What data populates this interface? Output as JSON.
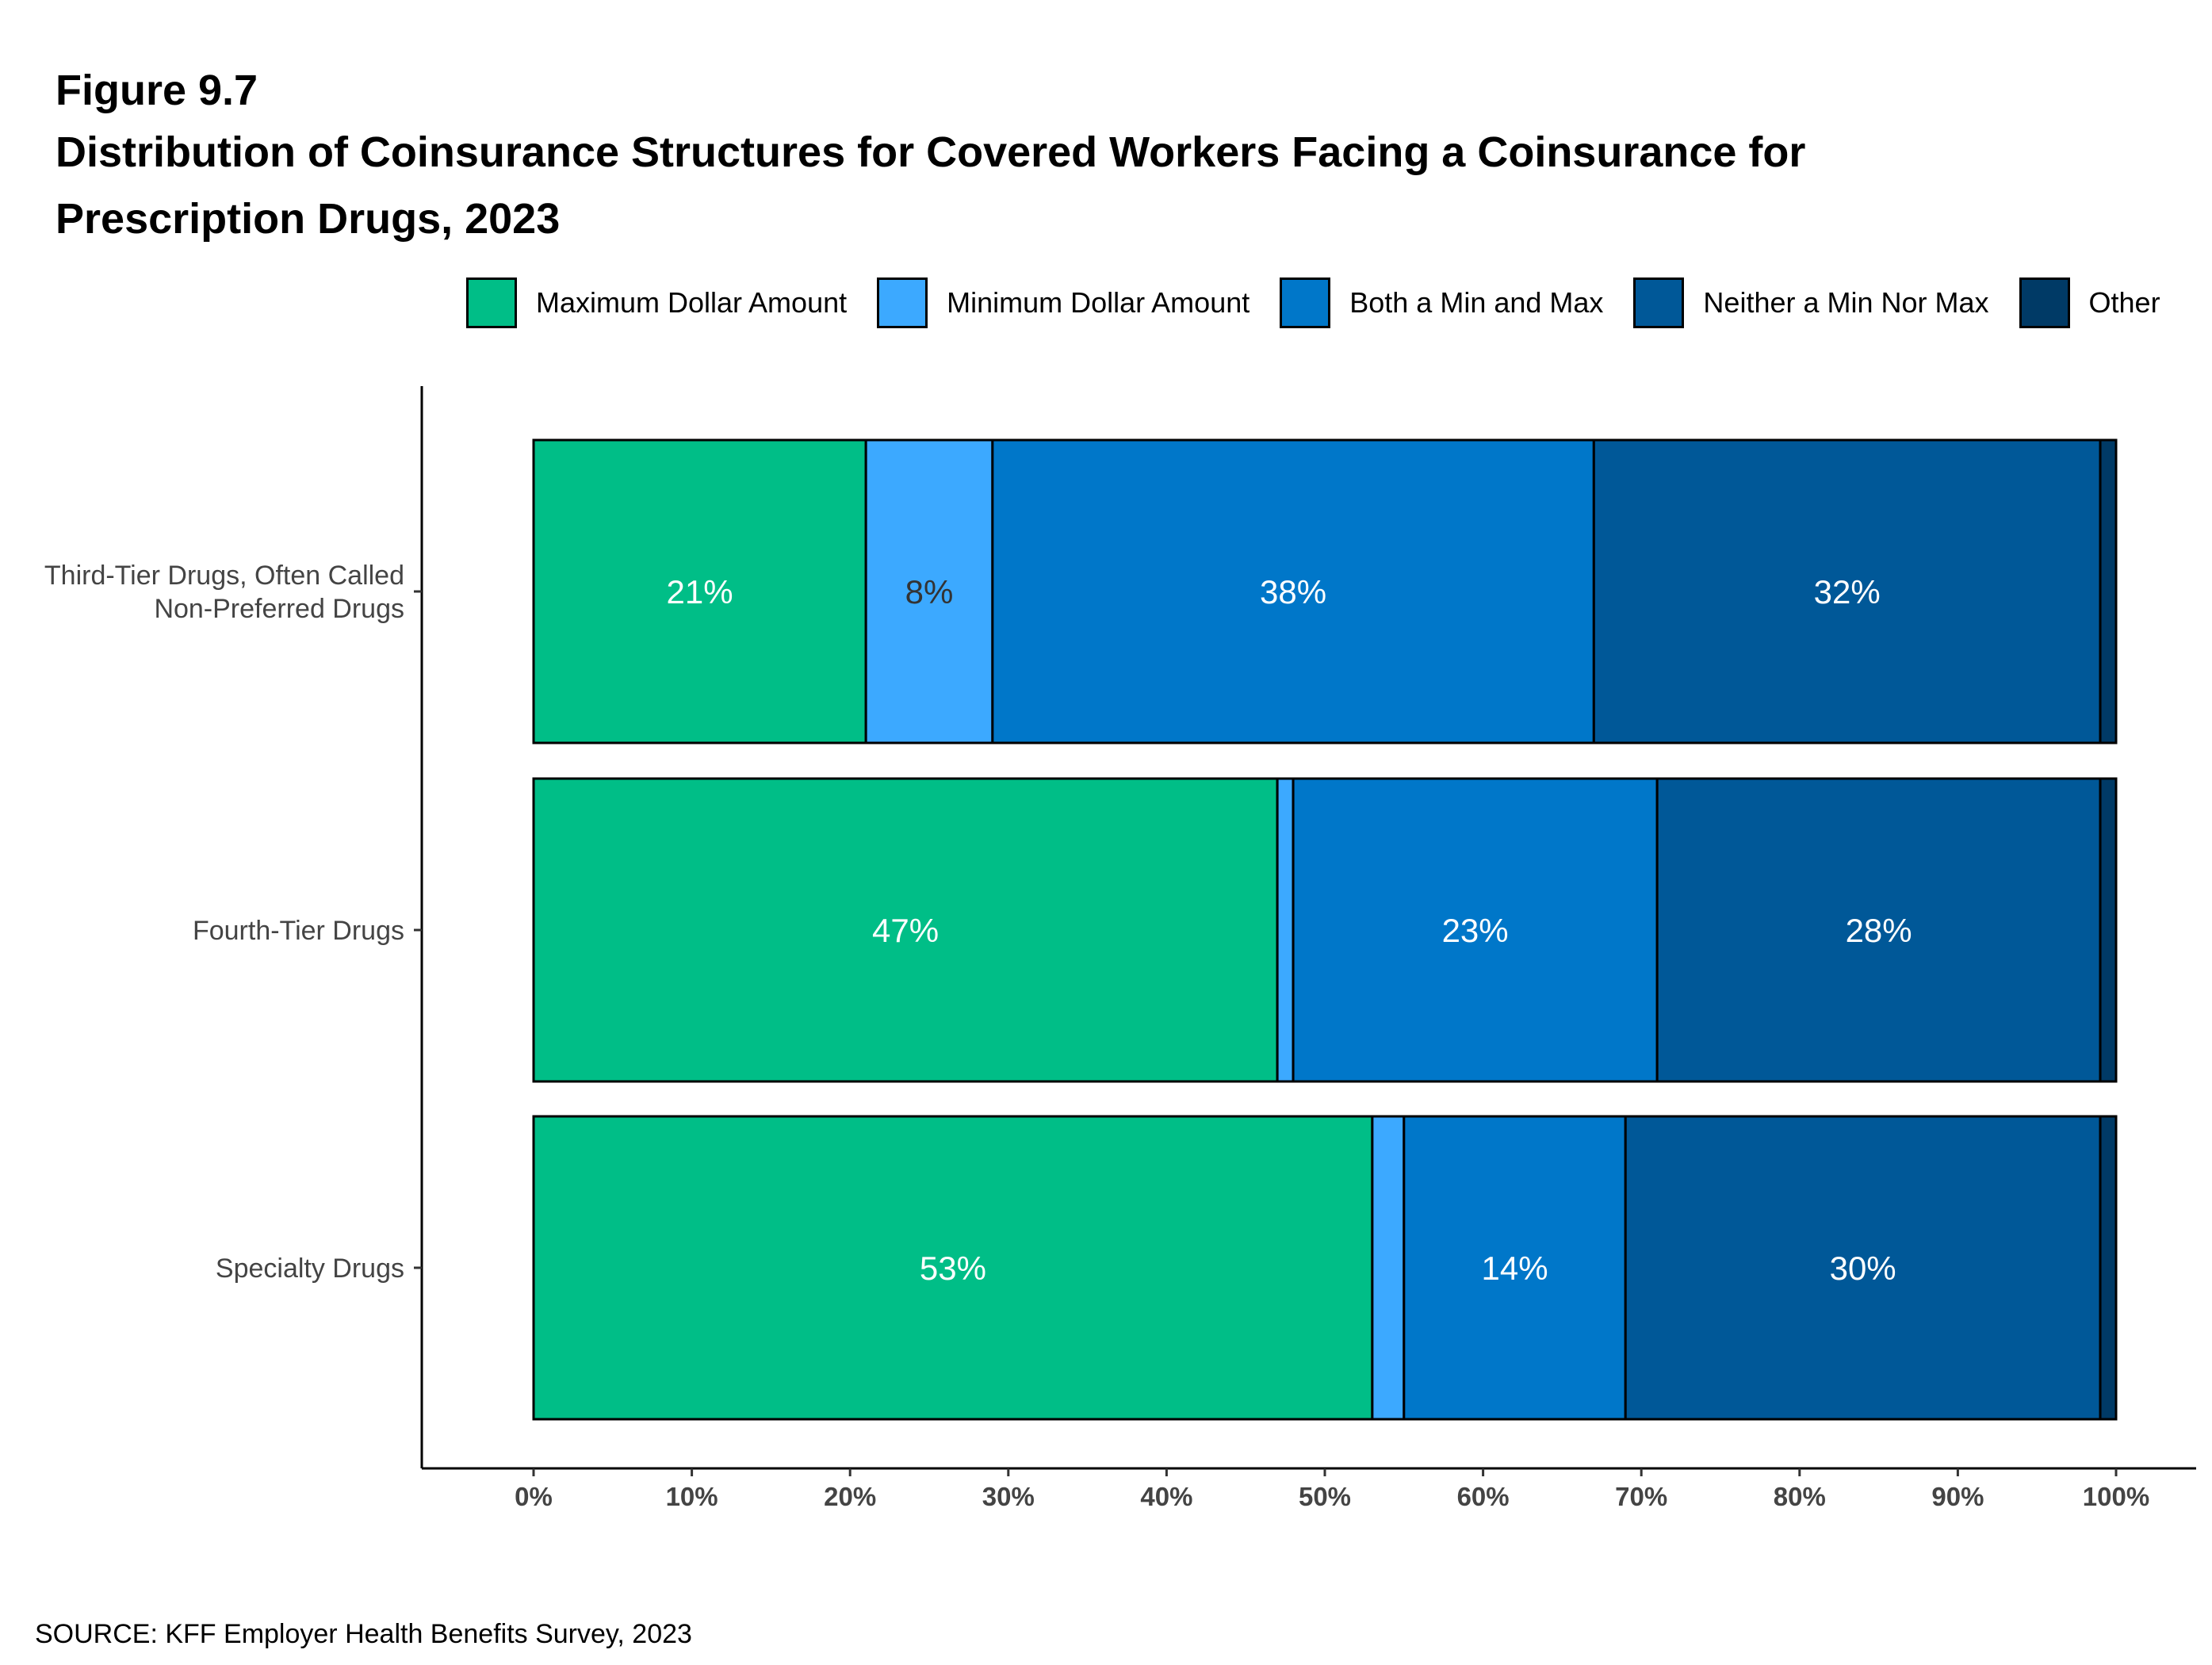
{
  "figure_label": "Figure 9.7",
  "title_line1": "Distribution of Coinsurance Structures for Covered Workers Facing a Coinsurance for",
  "title_line2": "Prescription Drugs, 2023",
  "source": "SOURCE: KFF Employer Health Benefits Survey, 2023",
  "legend": [
    {
      "label": "Maximum Dollar Amount",
      "color": "#00BE87"
    },
    {
      "label": "Minimum Dollar Amount",
      "color": "#3CA9FF"
    },
    {
      "label": "Both a Min and Max",
      "color": "#0077C9"
    },
    {
      "label": "Neither a Min Nor Max",
      "color": "#005898"
    },
    {
      "label": "Other",
      "color": "#003A66"
    }
  ],
  "chart_data": {
    "type": "bar",
    "orientation": "horizontal",
    "stacked": true,
    "categories": [
      "Third-Tier Drugs, Often Called Non-Preferred Drugs",
      "Fourth-Tier Drugs",
      "Specialty Drugs"
    ],
    "category_label_lines": [
      [
        "Third-Tier Drugs, Often Called",
        "Non-Preferred Drugs"
      ],
      [
        "Fourth-Tier Drugs"
      ],
      [
        "Specialty Drugs"
      ]
    ],
    "series": [
      {
        "name": "Maximum Dollar Amount",
        "values": [
          21,
          47,
          53
        ],
        "labels": [
          "21%",
          "47%",
          "53%"
        ],
        "label_color": "#ffffff"
      },
      {
        "name": "Minimum Dollar Amount",
        "values": [
          8,
          1,
          2
        ],
        "labels": [
          "8%",
          "",
          ""
        ],
        "label_color": "#333333"
      },
      {
        "name": "Both a Min and Max",
        "values": [
          38,
          23,
          14
        ],
        "labels": [
          "38%",
          "23%",
          "14%"
        ],
        "label_color": "#ffffff"
      },
      {
        "name": "Neither a Min Nor Max",
        "values": [
          32,
          28,
          30
        ],
        "labels": [
          "32%",
          "28%",
          "30%"
        ],
        "label_color": "#ffffff"
      },
      {
        "name": "Other",
        "values": [
          1,
          1,
          1
        ],
        "labels": [
          "",
          "",
          ""
        ],
        "label_color": "#ffffff"
      }
    ],
    "xlim": [
      0,
      100
    ],
    "x_ticks": [
      "0%",
      "10%",
      "20%",
      "30%",
      "40%",
      "50%",
      "60%",
      "70%",
      "80%",
      "90%",
      "100%"
    ],
    "xlabel": "",
    "ylabel": "",
    "grid": false,
    "legend_position": "top-right"
  }
}
